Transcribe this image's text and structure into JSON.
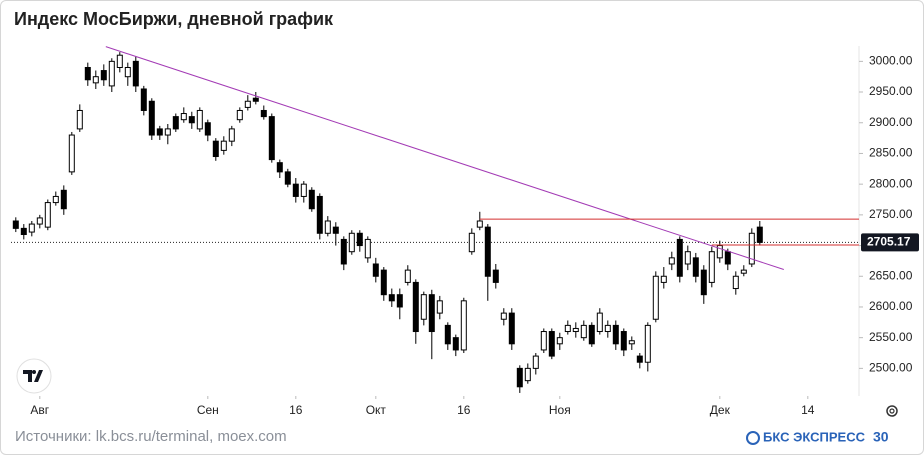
{
  "chart_data": {
    "type": "candlestick",
    "title": "Индекс МосБиржи, дневной график",
    "source": "Источники: lk.bcs.ru/terminal, moex.com",
    "brand": "БКС ЭКСПРЕСС",
    "brand_badge": "30",
    "up_color": "#ffffff",
    "down_color": "#000000",
    "open": [
      2740,
      2728,
      2722,
      2735,
      2730,
      2770,
      2790,
      2820,
      2890,
      2990,
      2965,
      2985,
      2960,
      2990,
      2975,
      3000,
      2955,
      2935,
      2890,
      2880,
      2910,
      2905,
      2910,
      2890,
      2900,
      2870,
      2855,
      2870,
      2905,
      2925,
      2940,
      2920,
      2910,
      2835,
      2820,
      2800,
      2780,
      2790,
      2780,
      2720,
      2730,
      2710,
      2690,
      2720,
      2680,
      2670,
      2660,
      2620,
      2620,
      2640,
      2640,
      2580,
      2620,
      2590,
      2570,
      2550,
      2530,
      2690,
      2730,
      2730,
      2660,
      2580,
      2590,
      2500,
      2480,
      2500,
      2530,
      2560,
      2540,
      2560,
      2560,
      2550,
      2570,
      2560,
      2560,
      2570,
      2560,
      2540,
      2520,
      2510,
      2580,
      2640,
      2670,
      2710,
      2670,
      2680,
      2660,
      2640,
      2680,
      2690,
      2630,
      2655,
      2670,
      2730
    ],
    "high": [
      2746,
      2735,
      2740,
      2750,
      2775,
      2788,
      2798,
      2885,
      2930,
      2998,
      2985,
      2995,
      3005,
      3015,
      2998,
      3008,
      2960,
      2940,
      2895,
      2898,
      2915,
      2925,
      2918,
      2925,
      2905,
      2875,
      2878,
      2895,
      2925,
      2945,
      2950,
      2928,
      2915,
      2840,
      2825,
      2810,
      2805,
      2795,
      2785,
      2748,
      2738,
      2715,
      2725,
      2725,
      2715,
      2680,
      2665,
      2630,
      2630,
      2668,
      2645,
      2625,
      2628,
      2618,
      2575,
      2555,
      2615,
      2728,
      2755,
      2735,
      2670,
      2598,
      2598,
      2505,
      2508,
      2525,
      2565,
      2565,
      2558,
      2578,
      2575,
      2578,
      2575,
      2598,
      2578,
      2578,
      2565,
      2552,
      2525,
      2575,
      2658,
      2665,
      2690,
      2715,
      2700,
      2688,
      2668,
      2698,
      2708,
      2695,
      2658,
      2668,
      2728,
      2740
    ],
    "low": [
      2722,
      2710,
      2715,
      2728,
      2725,
      2765,
      2750,
      2815,
      2885,
      2960,
      2955,
      2960,
      2950,
      2982,
      2960,
      2950,
      2912,
      2872,
      2872,
      2865,
      2885,
      2900,
      2890,
      2885,
      2870,
      2838,
      2848,
      2862,
      2900,
      2920,
      2930,
      2905,
      2835,
      2810,
      2795,
      2770,
      2770,
      2755,
      2710,
      2715,
      2700,
      2660,
      2685,
      2690,
      2672,
      2640,
      2610,
      2600,
      2580,
      2635,
      2540,
      2570,
      2515,
      2580,
      2530,
      2520,
      2525,
      2685,
      2725,
      2610,
      2630,
      2570,
      2530,
      2460,
      2475,
      2490,
      2525,
      2515,
      2530,
      2555,
      2550,
      2545,
      2535,
      2555,
      2550,
      2530,
      2520,
      2530,
      2500,
      2495,
      2575,
      2630,
      2660,
      2640,
      2660,
      2640,
      2605,
      2632,
      2672,
      2660,
      2620,
      2650,
      2665,
      2700
    ],
    "close": [
      2728,
      2718,
      2735,
      2745,
      2770,
      2780,
      2760,
      2880,
      2920,
      2970,
      2975,
      2970,
      3000,
      3010,
      2990,
      2960,
      2920,
      2880,
      2880,
      2890,
      2890,
      2915,
      2900,
      2920,
      2880,
      2845,
      2870,
      2890,
      2920,
      2935,
      2935,
      2910,
      2840,
      2820,
      2800,
      2780,
      2800,
      2760,
      2720,
      2740,
      2720,
      2670,
      2720,
      2700,
      2710,
      2650,
      2620,
      2610,
      2600,
      2660,
      2560,
      2620,
      2560,
      2610,
      2540,
      2530,
      2610,
      2720,
      2740,
      2650,
      2640,
      2590,
      2540,
      2470,
      2500,
      2520,
      2560,
      2520,
      2550,
      2570,
      2565,
      2570,
      2540,
      2590,
      2570,
      2540,
      2530,
      2545,
      2510,
      2570,
      2650,
      2650,
      2680,
      2650,
      2690,
      2650,
      2620,
      2690,
      2700,
      2670,
      2650,
      2660,
      2720,
      2705.17
    ],
    "xlim": [
      -0.6,
      105.4
    ],
    "xticks": [
      {
        "value": 3,
        "label": "Авг"
      },
      {
        "value": 24,
        "label": "Сен"
      },
      {
        "value": 35,
        "label": "16"
      },
      {
        "value": 45,
        "label": "Окт"
      },
      {
        "value": 56,
        "label": "16"
      },
      {
        "value": 68,
        "label": "Ноя"
      },
      {
        "value": 88,
        "label": "Дек"
      },
      {
        "value": 99,
        "label": "14"
      }
    ],
    "ylim": [
      2455,
      3025
    ],
    "yticks": [
      {
        "value": 2500,
        "label": "2500.00"
      },
      {
        "value": 2550,
        "label": "2550.00"
      },
      {
        "value": 2600,
        "label": "2600.00"
      },
      {
        "value": 2650,
        "label": "2650.00"
      },
      {
        "value": 2700,
        "label": "2700.00"
      },
      {
        "value": 2750,
        "label": "2750.00"
      },
      {
        "value": 2800,
        "label": "2800.00"
      },
      {
        "value": 2850,
        "label": "2850.00"
      },
      {
        "value": 2900,
        "label": "2900.00"
      },
      {
        "value": 2950,
        "label": "2950.00"
      },
      {
        "value": 3000,
        "label": "3000.00"
      }
    ],
    "trendline": {
      "color": "#a33bb5",
      "x": [
        11.25,
        96
      ],
      "y": [
        3024,
        2661
      ]
    },
    "level_lines": [
      {
        "color": "#d32f2f",
        "x": [
          58,
          105.4
        ],
        "y": [
          2743,
          2743
        ]
      },
      {
        "color": "#d32f2f",
        "x": [
          87,
          105.4
        ],
        "y": [
          2701,
          2701
        ]
      }
    ],
    "last_price": {
      "value": 2705.17,
      "label": "2705.17"
    }
  }
}
